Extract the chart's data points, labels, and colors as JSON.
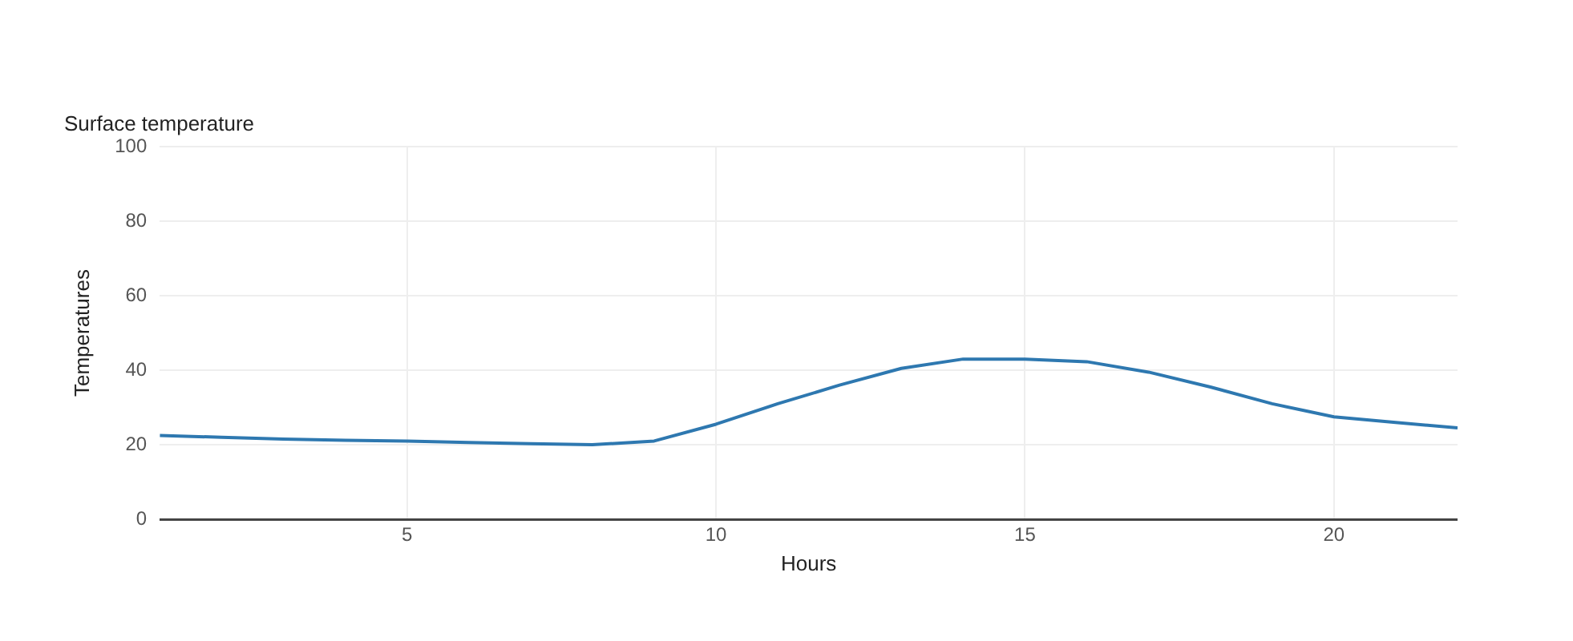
{
  "chart_data": {
    "type": "line",
    "title": "Surface temperature",
    "xlabel": "Hours",
    "ylabel": "Temperatures",
    "x": [
      1,
      2,
      3,
      4,
      5,
      6,
      7,
      8,
      9,
      10,
      11,
      12,
      13,
      14,
      15,
      16,
      17,
      18,
      19,
      20,
      21,
      22
    ],
    "series": [
      {
        "color": "#2e78b0",
        "values": [
          22.5,
          22,
          21.5,
          21.2,
          21,
          20.6,
          20.3,
          20,
          21,
          25.5,
          31,
          36,
          40.5,
          43,
          43,
          42.3,
          39.5,
          35.5,
          31,
          27.5,
          26,
          24.5
        ]
      }
    ],
    "xlim": [
      1,
      22
    ],
    "xticks": [
      5,
      10,
      15,
      20
    ],
    "ylim": [
      0,
      100
    ],
    "yticks": [
      0,
      20,
      40,
      60,
      80,
      100
    ],
    "grid": true,
    "marker": "none",
    "line_style": "solid"
  }
}
